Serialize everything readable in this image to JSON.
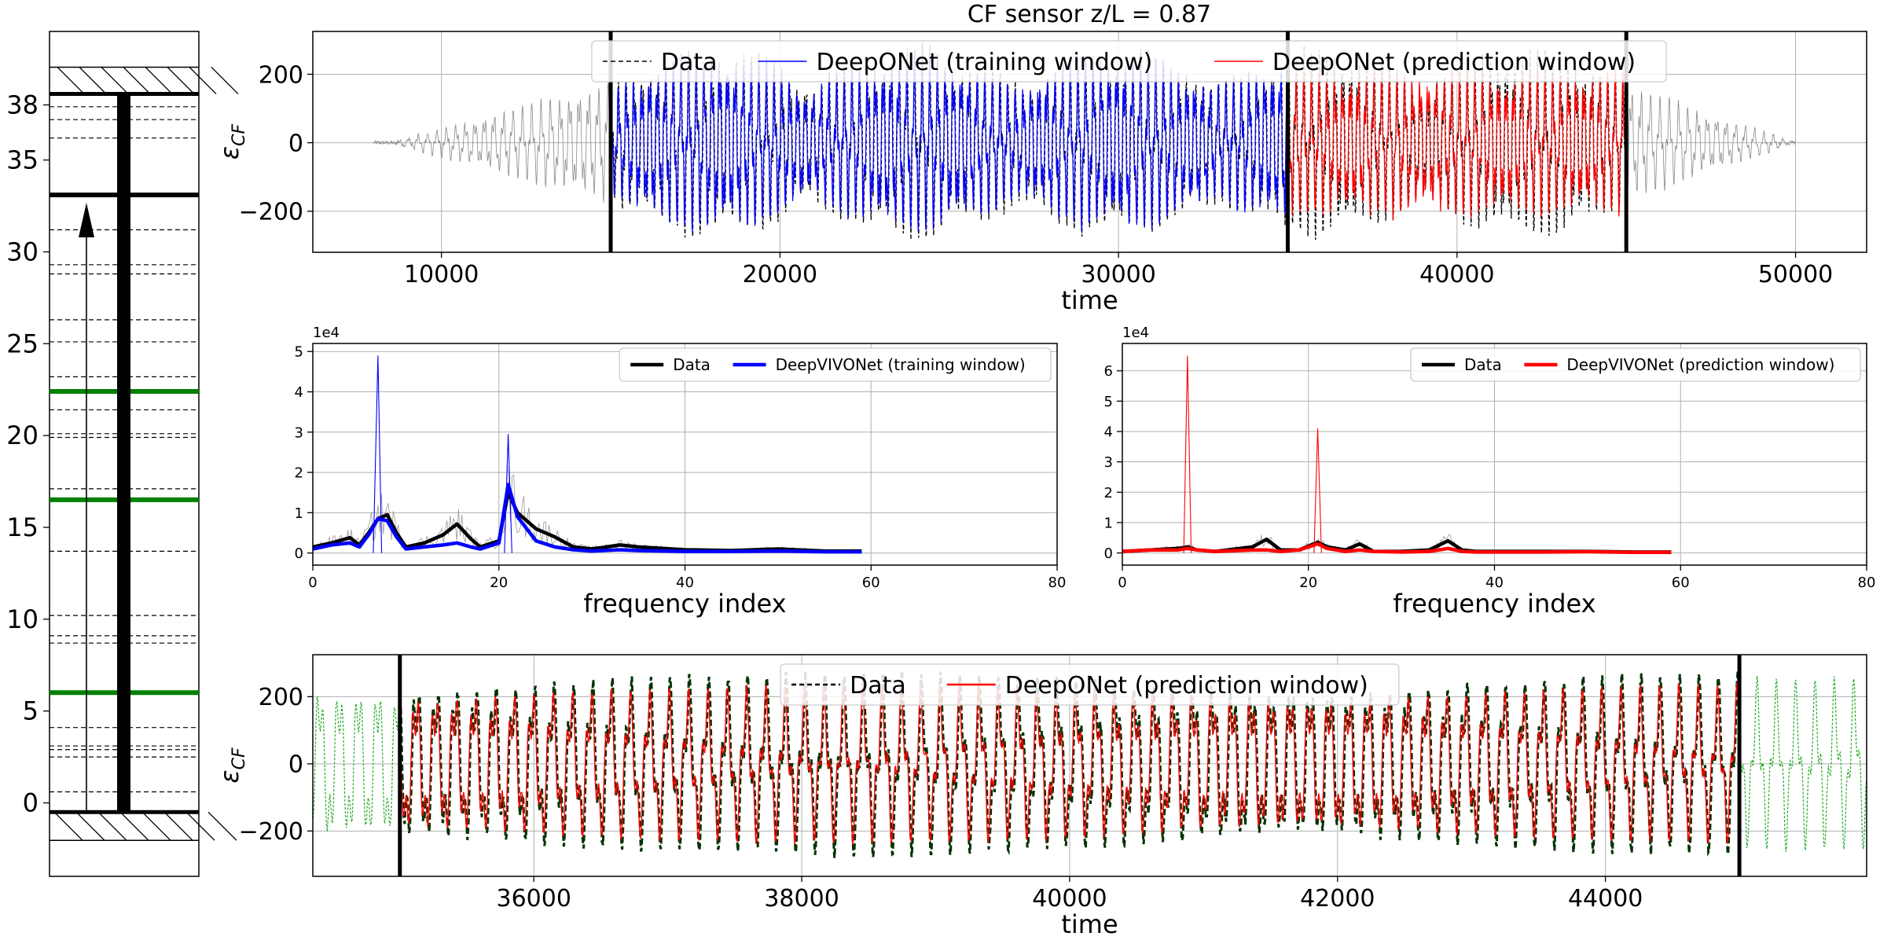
{
  "figure": {
    "title": "CF sensor z/L = 0.87"
  },
  "chart_data": [
    {
      "id": "riser",
      "type": "diagram",
      "yticks": [
        0,
        5,
        10,
        15,
        20,
        25,
        30,
        35,
        38
      ],
      "ylim": [
        -4,
        42
      ],
      "top_level": 38.6,
      "bottom_level": -0.5,
      "sensor_level": 33.1,
      "green_levels": [
        22.4,
        16.5,
        6.0
      ],
      "dashed_levels": [
        37.9,
        37.2,
        36.2,
        31.2,
        29.3,
        28.8,
        26.3,
        25.1,
        23.2,
        21.4,
        20.1,
        19.9,
        17.1,
        13.7,
        10.2,
        9.1,
        8.7,
        4.1,
        3.1,
        2.9,
        2.5,
        0.6
      ],
      "grid": false
    },
    {
      "id": "time-full",
      "type": "line",
      "ylabel": "ε",
      "ylabel_sub": "CF",
      "xlabel": "time",
      "xlim": [
        6200,
        52100
      ],
      "ylim": [
        -320,
        325
      ],
      "xticks": [
        10000,
        20000,
        30000,
        40000,
        50000
      ],
      "xtick_labels": [
        "10000",
        "20000",
        "30000",
        "40000",
        "50000"
      ],
      "yticks": [
        -200,
        0,
        200
      ],
      "ytick_labels": [
        "−200",
        "0",
        "200"
      ],
      "vlines": [
        15000,
        35000,
        45000
      ],
      "grid": true,
      "legend": {
        "position": "top-center",
        "columns": 3
      },
      "series": [
        {
          "name": "Data",
          "color": "#000000",
          "style": "dashed",
          "x_range": [
            8000,
            50000
          ],
          "amplitude": 240
        },
        {
          "name": "DeepONet (training window)",
          "color": "#0000ff",
          "style": "solid",
          "x_range": [
            15000,
            35000
          ],
          "amplitude": 230
        },
        {
          "name": "DeepONet (prediction window)",
          "color": "#ff0000",
          "style": "solid",
          "x_range": [
            35000,
            45000
          ],
          "amplitude": 240
        }
      ]
    },
    {
      "id": "spectrum-training",
      "type": "line",
      "xlabel": "frequency index",
      "scale_label": "1e4",
      "xlim": [
        0,
        80
      ],
      "ylim": [
        -0.3,
        5.2
      ],
      "xticks": [
        0,
        20,
        40,
        60,
        80
      ],
      "yticks": [
        0,
        1,
        2,
        3,
        4,
        5
      ],
      "grid": true,
      "legend": {
        "position": "top-right",
        "columns": 2
      },
      "series": [
        {
          "name": "Data",
          "color": "#000000",
          "x": [
            0,
            2,
            4,
            5,
            6,
            7,
            8,
            9,
            10,
            12,
            14,
            15.5,
            17,
            18,
            20,
            21,
            22,
            24,
            26,
            28,
            30,
            33,
            35,
            40,
            45,
            50,
            55,
            59
          ],
          "values": [
            0.15,
            0.25,
            0.38,
            0.2,
            0.5,
            0.85,
            0.95,
            0.5,
            0.15,
            0.25,
            0.45,
            0.72,
            0.35,
            0.15,
            0.3,
            1.5,
            1.0,
            0.6,
            0.4,
            0.15,
            0.1,
            0.2,
            0.15,
            0.08,
            0.06,
            0.1,
            0.05,
            0.05
          ]
        },
        {
          "name": "DeepVIVONet (training window)",
          "color": "#0000ff",
          "x": [
            0,
            2,
            4,
            5,
            6,
            7,
            8,
            9,
            10,
            12,
            14,
            15.5,
            17,
            18,
            20,
            21,
            22,
            24,
            26,
            28,
            30,
            33,
            35,
            40,
            45,
            50,
            55,
            59
          ],
          "values": [
            0.1,
            0.2,
            0.25,
            0.15,
            0.45,
            0.85,
            0.8,
            0.4,
            0.1,
            0.15,
            0.2,
            0.25,
            0.15,
            0.1,
            0.25,
            1.7,
            0.9,
            0.3,
            0.15,
            0.08,
            0.05,
            0.08,
            0.06,
            0.04,
            0.04,
            0.05,
            0.03,
            0.03
          ]
        },
        {
          "name": "",
          "color": "#0000ff",
          "thin": true,
          "x": [
            6.5,
            7,
            7.4,
            20.6,
            21,
            21.4
          ],
          "values": [
            0,
            4.9,
            0,
            0,
            2.95,
            0
          ]
        }
      ]
    },
    {
      "id": "spectrum-prediction",
      "type": "line",
      "xlabel": "frequency index",
      "scale_label": "1e4",
      "xlim": [
        0,
        80
      ],
      "ylim": [
        -0.4,
        6.9
      ],
      "xticks": [
        0,
        20,
        40,
        60,
        80
      ],
      "yticks": [
        0,
        1,
        2,
        3,
        4,
        5,
        6
      ],
      "grid": true,
      "legend": {
        "position": "top-right",
        "columns": 2
      },
      "series": [
        {
          "name": "Data",
          "color": "#000000",
          "x": [
            0,
            3,
            6,
            7,
            8,
            10,
            14,
            15.5,
            17,
            19,
            21,
            22,
            24,
            25.5,
            27,
            30,
            33,
            35,
            36.5,
            38,
            45,
            50,
            55,
            59
          ],
          "values": [
            0.05,
            0.1,
            0.15,
            0.2,
            0.1,
            0.05,
            0.2,
            0.45,
            0.1,
            0.1,
            0.35,
            0.2,
            0.1,
            0.3,
            0.05,
            0.05,
            0.1,
            0.4,
            0.1,
            0.05,
            0.05,
            0.05,
            0.03,
            0.03
          ]
        },
        {
          "name": "DeepVIVONet (prediction window)",
          "color": "#ff0000",
          "x": [
            0,
            3,
            6,
            7,
            8,
            10,
            14,
            15.5,
            17,
            19,
            21,
            22,
            24,
            25.5,
            27,
            30,
            33,
            35,
            36.5,
            38,
            45,
            50,
            55,
            59
          ],
          "values": [
            0.05,
            0.1,
            0.1,
            0.15,
            0.1,
            0.05,
            0.1,
            0.1,
            0.05,
            0.1,
            0.3,
            0.15,
            0.05,
            0.1,
            0.05,
            0.03,
            0.05,
            0.15,
            0.05,
            0.03,
            0.03,
            0.04,
            0.02,
            0.02
          ]
        },
        {
          "name": "",
          "color": "#ff0000",
          "thin": true,
          "x": [
            6.6,
            7,
            7.4,
            20.6,
            21,
            21.4
          ],
          "values": [
            0,
            6.5,
            0,
            0,
            4.1,
            0
          ]
        }
      ]
    },
    {
      "id": "time-zoom",
      "type": "line",
      "ylabel": "ε",
      "ylabel_sub": "CF",
      "xlabel": "time",
      "xlim": [
        34350,
        45950
      ],
      "ylim": [
        -335,
        325
      ],
      "xticks": [
        36000,
        38000,
        40000,
        42000,
        44000
      ],
      "xtick_labels": [
        "36000",
        "38000",
        "40000",
        "42000",
        "44000"
      ],
      "yticks": [
        -200,
        0,
        200
      ],
      "ytick_labels": [
        "−200",
        "0",
        "200"
      ],
      "vlines": [
        35000,
        45000
      ],
      "grid": true,
      "legend": {
        "position": "top-center",
        "columns": 2
      },
      "series": [
        {
          "name": "Data",
          "color": "#000000",
          "style": "dashed",
          "x_range": [
            35000,
            45000
          ],
          "amplitude": 230
        },
        {
          "name": "DeepONet (prediction window)",
          "color": "#ff0000",
          "style": "solid",
          "x_range": [
            35000,
            45000
          ],
          "amplitude": 210
        }
      ]
    }
  ]
}
